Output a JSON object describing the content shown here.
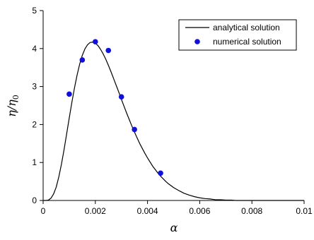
{
  "chart_data": {
    "type": "line",
    "title": "",
    "xlabel": "α",
    "ylabel": "η/η0",
    "xlim": [
      0,
      0.01
    ],
    "ylim": [
      0,
      5
    ],
    "x_ticks": [
      0,
      0.002,
      0.004,
      0.006,
      0.008,
      0.01
    ],
    "x_tick_labels": [
      "0",
      "0.002",
      "0.004",
      "0.006",
      "0.008",
      "0.01"
    ],
    "y_ticks": [
      0,
      1,
      2,
      3,
      4,
      5
    ],
    "y_tick_labels": [
      "0",
      "1",
      "2",
      "3",
      "4",
      "5"
    ],
    "grid": false,
    "legend_position": "top-right",
    "series": [
      {
        "name": "analytical solution",
        "kind": "line",
        "color": "#000000",
        "x": [
          0,
          0.0001,
          0.0002,
          0.0003,
          0.0004,
          0.0005,
          0.0006,
          0.0007,
          0.0008,
          0.0009,
          0.001,
          0.0011,
          0.0012,
          0.0013,
          0.0014,
          0.0015,
          0.0016,
          0.0017,
          0.0018,
          0.0019,
          0.002,
          0.0021,
          0.0022,
          0.0023,
          0.0024,
          0.0025,
          0.0026,
          0.0027,
          0.0028,
          0.0029,
          0.003,
          0.0031,
          0.0032,
          0.0033,
          0.0034,
          0.0035,
          0.0036,
          0.0037,
          0.0038,
          0.0039,
          0.004,
          0.0041,
          0.0042,
          0.0043,
          0.0044,
          0.0045,
          0.0046,
          0.0047,
          0.0048,
          0.0049,
          0.005,
          0.0052,
          0.0054,
          0.0056,
          0.0058,
          0.006,
          0.0062,
          0.0064,
          0.0066,
          0.0068,
          0.007,
          0.0072,
          0.0074,
          0.0076,
          0.0078,
          0.008,
          0.0082,
          0.0084,
          0.0086,
          0.0088,
          0.009,
          0.0092,
          0.0094,
          0.0096,
          0.0098,
          0.01
        ],
        "y": [
          0,
          0.0,
          0.01,
          0.06,
          0.17,
          0.35,
          0.62,
          0.95,
          1.33,
          1.75,
          2.17,
          2.58,
          2.96,
          3.3,
          3.59,
          3.82,
          3.99,
          4.1,
          4.16,
          4.17,
          4.14,
          4.08,
          3.98,
          3.86,
          3.72,
          3.56,
          3.39,
          3.21,
          3.03,
          2.85,
          2.66,
          2.48,
          2.3,
          2.13,
          1.96,
          1.8,
          1.65,
          1.5,
          1.37,
          1.24,
          1.12,
          1.01,
          0.9,
          0.81,
          0.72,
          0.64,
          0.57,
          0.5,
          0.44,
          0.39,
          0.34,
          0.26,
          0.19,
          0.14,
          0.1,
          0.07,
          0.05,
          0.04,
          0.02,
          0.02,
          0.01,
          0.01,
          0.0,
          0.0,
          0.0,
          0.0,
          0.0,
          0.0,
          0.0,
          0.0,
          0.0,
          0.0,
          0.0,
          0.0,
          0.0,
          0.0
        ]
      },
      {
        "name": "numerical solution",
        "kind": "scatter",
        "color": "#1010d8",
        "x": [
          0.001,
          0.0015,
          0.002,
          0.0025,
          0.003,
          0.0035,
          0.0045
        ],
        "y": [
          2.8,
          3.7,
          4.18,
          3.95,
          2.73,
          1.87,
          0.72
        ]
      }
    ]
  }
}
